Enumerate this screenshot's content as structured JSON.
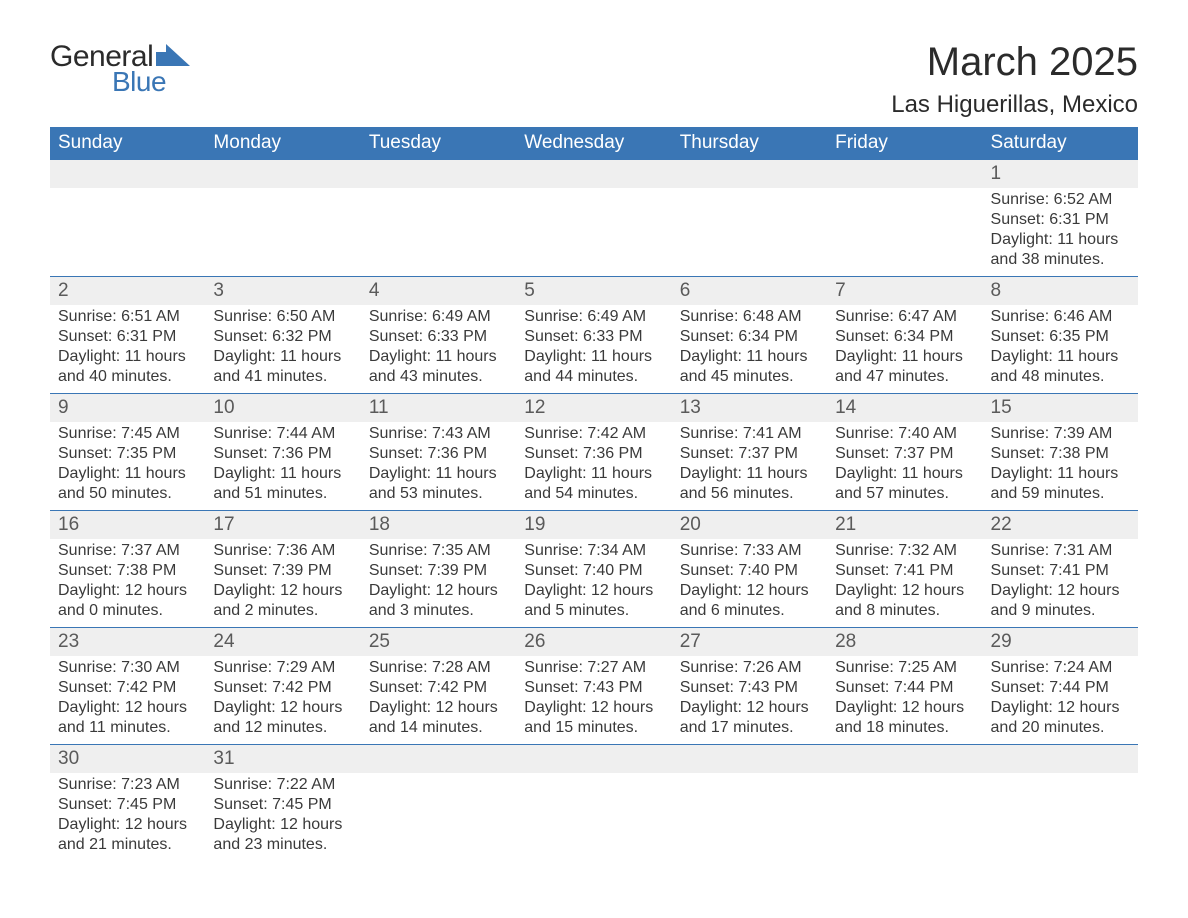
{
  "brand": {
    "word1": "General",
    "word2": "Blue"
  },
  "title": "March 2025",
  "location": "Las Higuerillas, Mexico",
  "colors": {
    "header_bg": "#3a76b5",
    "header_fg": "#ffffff",
    "band_bg": "#efefef",
    "text": "#3a3a3a",
    "rule": "#3a76b5"
  },
  "weekdays": [
    "Sunday",
    "Monday",
    "Tuesday",
    "Wednesday",
    "Thursday",
    "Friday",
    "Saturday"
  ],
  "weeks": [
    [
      null,
      null,
      null,
      null,
      null,
      null,
      {
        "n": "1",
        "sunrise": "Sunrise: 6:52 AM",
        "sunset": "Sunset: 6:31 PM",
        "day1": "Daylight: 11 hours",
        "day2": "and 38 minutes."
      }
    ],
    [
      {
        "n": "2",
        "sunrise": "Sunrise: 6:51 AM",
        "sunset": "Sunset: 6:31 PM",
        "day1": "Daylight: 11 hours",
        "day2": "and 40 minutes."
      },
      {
        "n": "3",
        "sunrise": "Sunrise: 6:50 AM",
        "sunset": "Sunset: 6:32 PM",
        "day1": "Daylight: 11 hours",
        "day2": "and 41 minutes."
      },
      {
        "n": "4",
        "sunrise": "Sunrise: 6:49 AM",
        "sunset": "Sunset: 6:33 PM",
        "day1": "Daylight: 11 hours",
        "day2": "and 43 minutes."
      },
      {
        "n": "5",
        "sunrise": "Sunrise: 6:49 AM",
        "sunset": "Sunset: 6:33 PM",
        "day1": "Daylight: 11 hours",
        "day2": "and 44 minutes."
      },
      {
        "n": "6",
        "sunrise": "Sunrise: 6:48 AM",
        "sunset": "Sunset: 6:34 PM",
        "day1": "Daylight: 11 hours",
        "day2": "and 45 minutes."
      },
      {
        "n": "7",
        "sunrise": "Sunrise: 6:47 AM",
        "sunset": "Sunset: 6:34 PM",
        "day1": "Daylight: 11 hours",
        "day2": "and 47 minutes."
      },
      {
        "n": "8",
        "sunrise": "Sunrise: 6:46 AM",
        "sunset": "Sunset: 6:35 PM",
        "day1": "Daylight: 11 hours",
        "day2": "and 48 minutes."
      }
    ],
    [
      {
        "n": "9",
        "sunrise": "Sunrise: 7:45 AM",
        "sunset": "Sunset: 7:35 PM",
        "day1": "Daylight: 11 hours",
        "day2": "and 50 minutes."
      },
      {
        "n": "10",
        "sunrise": "Sunrise: 7:44 AM",
        "sunset": "Sunset: 7:36 PM",
        "day1": "Daylight: 11 hours",
        "day2": "and 51 minutes."
      },
      {
        "n": "11",
        "sunrise": "Sunrise: 7:43 AM",
        "sunset": "Sunset: 7:36 PM",
        "day1": "Daylight: 11 hours",
        "day2": "and 53 minutes."
      },
      {
        "n": "12",
        "sunrise": "Sunrise: 7:42 AM",
        "sunset": "Sunset: 7:36 PM",
        "day1": "Daylight: 11 hours",
        "day2": "and 54 minutes."
      },
      {
        "n": "13",
        "sunrise": "Sunrise: 7:41 AM",
        "sunset": "Sunset: 7:37 PM",
        "day1": "Daylight: 11 hours",
        "day2": "and 56 minutes."
      },
      {
        "n": "14",
        "sunrise": "Sunrise: 7:40 AM",
        "sunset": "Sunset: 7:37 PM",
        "day1": "Daylight: 11 hours",
        "day2": "and 57 minutes."
      },
      {
        "n": "15",
        "sunrise": "Sunrise: 7:39 AM",
        "sunset": "Sunset: 7:38 PM",
        "day1": "Daylight: 11 hours",
        "day2": "and 59 minutes."
      }
    ],
    [
      {
        "n": "16",
        "sunrise": "Sunrise: 7:37 AM",
        "sunset": "Sunset: 7:38 PM",
        "day1": "Daylight: 12 hours",
        "day2": "and 0 minutes."
      },
      {
        "n": "17",
        "sunrise": "Sunrise: 7:36 AM",
        "sunset": "Sunset: 7:39 PM",
        "day1": "Daylight: 12 hours",
        "day2": "and 2 minutes."
      },
      {
        "n": "18",
        "sunrise": "Sunrise: 7:35 AM",
        "sunset": "Sunset: 7:39 PM",
        "day1": "Daylight: 12 hours",
        "day2": "and 3 minutes."
      },
      {
        "n": "19",
        "sunrise": "Sunrise: 7:34 AM",
        "sunset": "Sunset: 7:40 PM",
        "day1": "Daylight: 12 hours",
        "day2": "and 5 minutes."
      },
      {
        "n": "20",
        "sunrise": "Sunrise: 7:33 AM",
        "sunset": "Sunset: 7:40 PM",
        "day1": "Daylight: 12 hours",
        "day2": "and 6 minutes."
      },
      {
        "n": "21",
        "sunrise": "Sunrise: 7:32 AM",
        "sunset": "Sunset: 7:41 PM",
        "day1": "Daylight: 12 hours",
        "day2": "and 8 minutes."
      },
      {
        "n": "22",
        "sunrise": "Sunrise: 7:31 AM",
        "sunset": "Sunset: 7:41 PM",
        "day1": "Daylight: 12 hours",
        "day2": "and 9 minutes."
      }
    ],
    [
      {
        "n": "23",
        "sunrise": "Sunrise: 7:30 AM",
        "sunset": "Sunset: 7:42 PM",
        "day1": "Daylight: 12 hours",
        "day2": "and 11 minutes."
      },
      {
        "n": "24",
        "sunrise": "Sunrise: 7:29 AM",
        "sunset": "Sunset: 7:42 PM",
        "day1": "Daylight: 12 hours",
        "day2": "and 12 minutes."
      },
      {
        "n": "25",
        "sunrise": "Sunrise: 7:28 AM",
        "sunset": "Sunset: 7:42 PM",
        "day1": "Daylight: 12 hours",
        "day2": "and 14 minutes."
      },
      {
        "n": "26",
        "sunrise": "Sunrise: 7:27 AM",
        "sunset": "Sunset: 7:43 PM",
        "day1": "Daylight: 12 hours",
        "day2": "and 15 minutes."
      },
      {
        "n": "27",
        "sunrise": "Sunrise: 7:26 AM",
        "sunset": "Sunset: 7:43 PM",
        "day1": "Daylight: 12 hours",
        "day2": "and 17 minutes."
      },
      {
        "n": "28",
        "sunrise": "Sunrise: 7:25 AM",
        "sunset": "Sunset: 7:44 PM",
        "day1": "Daylight: 12 hours",
        "day2": "and 18 minutes."
      },
      {
        "n": "29",
        "sunrise": "Sunrise: 7:24 AM",
        "sunset": "Sunset: 7:44 PM",
        "day1": "Daylight: 12 hours",
        "day2": "and 20 minutes."
      }
    ],
    [
      {
        "n": "30",
        "sunrise": "Sunrise: 7:23 AM",
        "sunset": "Sunset: 7:45 PM",
        "day1": "Daylight: 12 hours",
        "day2": "and 21 minutes."
      },
      {
        "n": "31",
        "sunrise": "Sunrise: 7:22 AM",
        "sunset": "Sunset: 7:45 PM",
        "day1": "Daylight: 12 hours",
        "day2": "and 23 minutes."
      },
      null,
      null,
      null,
      null,
      null
    ]
  ]
}
